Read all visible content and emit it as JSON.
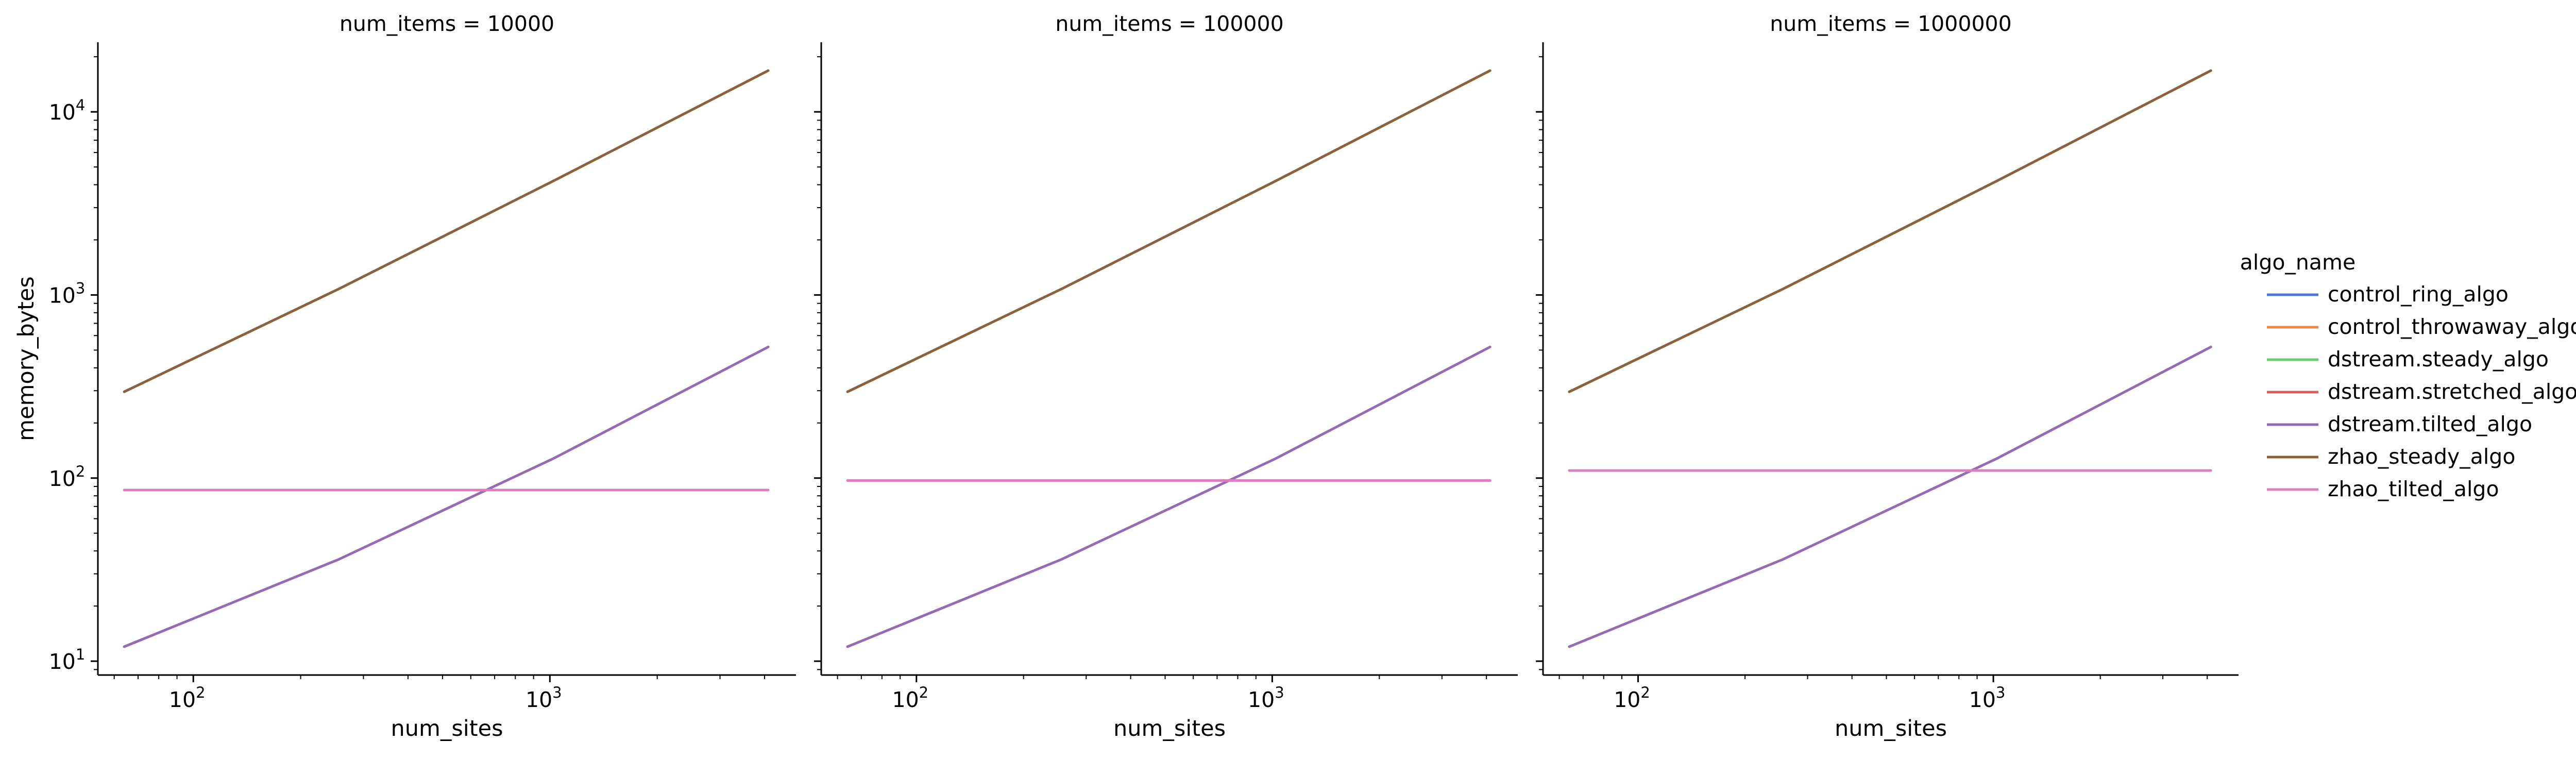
{
  "chart_data": [
    {
      "type": "line",
      "title": "num_items = 10000",
      "xlabel": "num_sites",
      "ylabel": "memory_bytes",
      "xscale": "log",
      "yscale": "log",
      "xlim": [
        54,
        4900
      ],
      "ylim": [
        8.4,
        24000
      ],
      "x_ticks": [
        {
          "value": 100,
          "label": "10",
          "exp": "2"
        },
        {
          "value": 1000,
          "label": "10",
          "exp": "3"
        }
      ],
      "y_ticks": [
        {
          "value": 10,
          "label": "10",
          "exp": "1"
        },
        {
          "value": 100,
          "label": "10",
          "exp": "2"
        },
        {
          "value": 1000,
          "label": "10",
          "exp": "3"
        },
        {
          "value": 10000,
          "label": "10",
          "exp": "4"
        }
      ],
      "grid": false,
      "series": [
        {
          "name": "zhao_steady_algo",
          "x": [
            64,
            256,
            1024,
            4096
          ],
          "values": [
            296,
            1080,
            4200,
            16800
          ]
        },
        {
          "name": "dstream.tilted_algo",
          "x": [
            64,
            256,
            1024,
            4096
          ],
          "values": [
            12,
            36,
            128,
            520
          ]
        },
        {
          "name": "zhao_tilted_algo",
          "x": [
            64,
            4096
          ],
          "values": [
            86,
            86
          ]
        }
      ]
    },
    {
      "type": "line",
      "title": "num_items = 100000",
      "xlabel": "num_sites",
      "ylabel": "",
      "xscale": "log",
      "yscale": "log",
      "xlim": [
        54,
        4900
      ],
      "ylim": [
        8.4,
        24000
      ],
      "x_ticks": [
        {
          "value": 100,
          "label": "10",
          "exp": "2"
        },
        {
          "value": 1000,
          "label": "10",
          "exp": "3"
        }
      ],
      "y_ticks": [],
      "grid": false,
      "series": [
        {
          "name": "zhao_steady_algo",
          "x": [
            64,
            256,
            1024,
            4096
          ],
          "values": [
            296,
            1080,
            4200,
            16800
          ]
        },
        {
          "name": "dstream.tilted_algo",
          "x": [
            64,
            256,
            1024,
            4096
          ],
          "values": [
            12,
            36,
            128,
            520
          ]
        },
        {
          "name": "zhao_tilted_algo",
          "x": [
            64,
            4096
          ],
          "values": [
            97,
            97
          ]
        }
      ]
    },
    {
      "type": "line",
      "title": "num_items = 1000000",
      "xlabel": "num_sites",
      "ylabel": "",
      "xscale": "log",
      "yscale": "log",
      "xlim": [
        54,
        4900
      ],
      "ylim": [
        8.4,
        24000
      ],
      "x_ticks": [
        {
          "value": 100,
          "label": "10",
          "exp": "2"
        },
        {
          "value": 1000,
          "label": "10",
          "exp": "3"
        }
      ],
      "y_ticks": [],
      "grid": false,
      "series": [
        {
          "name": "zhao_steady_algo",
          "x": [
            64,
            256,
            1024,
            4096
          ],
          "values": [
            296,
            1080,
            4200,
            16800
          ]
        },
        {
          "name": "dstream.tilted_algo",
          "x": [
            64,
            256,
            1024,
            4096
          ],
          "values": [
            12,
            36,
            128,
            520
          ]
        },
        {
          "name": "zhao_tilted_algo",
          "x": [
            64,
            4096
          ],
          "values": [
            110,
            110
          ]
        }
      ]
    }
  ],
  "legend": {
    "title": "algo_name",
    "placement": "right",
    "items": [
      {
        "label": "control_ring_algo",
        "color": "#4878d0"
      },
      {
        "label": "control_throwaway_algo",
        "color": "#ee854a"
      },
      {
        "label": "dstream.steady_algo",
        "color": "#6acc64"
      },
      {
        "label": "dstream.stretched_algo",
        "color": "#d65f5f"
      },
      {
        "label": "dstream.tilted_algo",
        "color": "#956cb4"
      },
      {
        "label": "zhao_steady_algo",
        "color": "#8c613c"
      },
      {
        "label": "zhao_tilted_algo",
        "color": "#dc7ec0"
      }
    ]
  }
}
